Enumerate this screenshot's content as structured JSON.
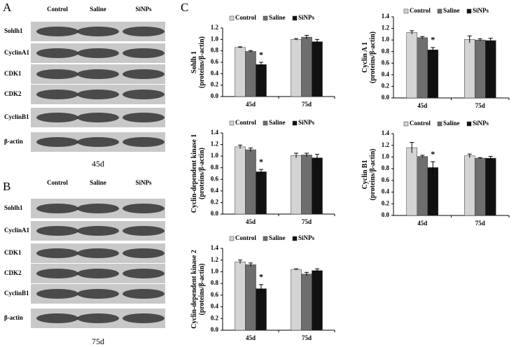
{
  "blots": [
    {
      "panel": "A",
      "columns": [
        "Control",
        "Saline",
        "SiNPs"
      ],
      "rows": [
        "Sohlh1",
        "CyclinA1",
        "CDK1",
        "CDK2",
        "CyclinB1",
        "β-actin"
      ],
      "caption": "45d"
    },
    {
      "panel": "B",
      "columns": [
        "Control",
        "Saline",
        "SiNPs"
      ],
      "rows": [
        "Sohlh1",
        "CyclinA1",
        "CDK1",
        "CDK2",
        "CyclinB1",
        "β-actin"
      ],
      "caption": "75d"
    }
  ],
  "chart_panel": "C",
  "chart_data": [
    {
      "type": "bar",
      "ylabel": [
        "Sohlh 1",
        "(proteins/β-actin)"
      ],
      "categories": [
        "45d",
        "75d"
      ],
      "series": [
        {
          "name": "Control",
          "color": "#d4d4d4",
          "values": [
            0.86,
            1.0
          ],
          "errors": [
            0.01,
            0.015
          ]
        },
        {
          "name": "Saline",
          "color": "#6e6e6e",
          "values": [
            0.79,
            1.04
          ],
          "errors": [
            0.015,
            0.03
          ]
        },
        {
          "name": "SiNPs",
          "color": "#111111",
          "values": [
            0.56,
            0.96
          ],
          "errors": [
            0.04,
            0.04
          ],
          "marks": [
            "*",
            null
          ]
        }
      ],
      "ylim": [
        0,
        1.2
      ],
      "yticks": [
        {
          "value": 0,
          "label": "0.0"
        },
        {
          "value": 0.2,
          "label": "0.2"
        },
        {
          "value": 0.4,
          "label": "0.4"
        },
        {
          "value": 0.6,
          "label": "0.6"
        },
        {
          "value": 0.8,
          "label": "0.8"
        },
        {
          "value": 1,
          "label": "1.0"
        },
        {
          "value": 1.2,
          "label": "1.2"
        }
      ],
      "legend": "top"
    },
    {
      "type": "bar",
      "ylabel": [
        "Cyclin A 1",
        "(proteins/β-actin)"
      ],
      "categories": [
        "45d",
        "75d"
      ],
      "series": [
        {
          "name": "Control",
          "color": "#d4d4d4",
          "values": [
            1.13,
            1.01
          ],
          "errors": [
            0.03,
            0.06
          ]
        },
        {
          "name": "Saline",
          "color": "#6e6e6e",
          "values": [
            1.04,
            1.0
          ],
          "errors": [
            0.02,
            0.02
          ]
        },
        {
          "name": "SiNPs",
          "color": "#111111",
          "values": [
            0.83,
            0.99
          ],
          "errors": [
            0.04,
            0.04
          ],
          "marks": [
            "*",
            null
          ]
        }
      ],
      "ylim": [
        0,
        1.4
      ],
      "yticks": [
        {
          "value": 0,
          "label": "0.0"
        },
        {
          "value": 0.2,
          "label": "0.2"
        },
        {
          "value": 0.4,
          "label": "0.4"
        },
        {
          "value": 0.6,
          "label": "0.6"
        },
        {
          "value": 0.8,
          "label": "0.8"
        },
        {
          "value": 1,
          "label": "1.0"
        },
        {
          "value": 1.2,
          "label": "1.2"
        },
        {
          "value": 1.4,
          "label": "1.4"
        }
      ],
      "legend": "top"
    },
    {
      "type": "bar",
      "ylabel": [
        "Cyclin-dependent kinase 1",
        "(proteins/β-actin)"
      ],
      "categories": [
        "45d",
        "75d"
      ],
      "series": [
        {
          "name": "Control",
          "color": "#d4d4d4",
          "values": [
            1.16,
            1.01
          ],
          "errors": [
            0.03,
            0.04
          ]
        },
        {
          "name": "Saline",
          "color": "#6e6e6e",
          "values": [
            1.11,
            1.02
          ],
          "errors": [
            0.03,
            0.03
          ]
        },
        {
          "name": "SiNPs",
          "color": "#111111",
          "values": [
            0.73,
            0.97
          ],
          "errors": [
            0.04,
            0.06
          ],
          "marks": [
            "*",
            null
          ]
        }
      ],
      "ylim": [
        0,
        1.4
      ],
      "yticks": [
        {
          "value": 0,
          "label": "0.0"
        },
        {
          "value": 0.2,
          "label": "0.2"
        },
        {
          "value": 0.4,
          "label": "0.4"
        },
        {
          "value": 0.6,
          "label": "0.6"
        },
        {
          "value": 0.8,
          "label": "0.8"
        },
        {
          "value": 1,
          "label": "1.0"
        },
        {
          "value": 1.2,
          "label": "1.2"
        },
        {
          "value": 1.4,
          "label": "1.4"
        }
      ],
      "legend": "top"
    },
    {
      "type": "bar",
      "ylabel": [
        "Cyclin B1",
        "(proteins/β-actin)"
      ],
      "categories": [
        "45d",
        "75d"
      ],
      "series": [
        {
          "name": "Control",
          "color": "#d4d4d4",
          "values": [
            1.16,
            1.02
          ],
          "errors": [
            0.09,
            0.03
          ]
        },
        {
          "name": "Saline",
          "color": "#6e6e6e",
          "values": [
            1.01,
            0.98
          ],
          "errors": [
            0.02,
            0.01
          ]
        },
        {
          "name": "SiNPs",
          "color": "#111111",
          "values": [
            0.82,
            0.98
          ],
          "errors": [
            0.1,
            0.03
          ],
          "marks": [
            "*",
            null
          ]
        }
      ],
      "ylim": [
        0,
        1.4
      ],
      "yticks": [
        {
          "value": 0,
          "label": "0.0"
        },
        {
          "value": 0.2,
          "label": "0.2"
        },
        {
          "value": 0.4,
          "label": "0.4"
        },
        {
          "value": 0.6,
          "label": "0.6"
        },
        {
          "value": 0.8,
          "label": "0.8"
        },
        {
          "value": 1,
          "label": "1.0"
        },
        {
          "value": 1.2,
          "label": "1.2"
        },
        {
          "value": 1.4,
          "label": "1.4"
        }
      ],
      "legend": "top"
    },
    {
      "type": "bar",
      "ylabel": [
        "Cyclin-dependent kinase 2",
        "(proteins/β-actin)"
      ],
      "categories": [
        "45d",
        "75d"
      ],
      "series": [
        {
          "name": "Control",
          "color": "#d4d4d4",
          "values": [
            1.17,
            1.04
          ],
          "errors": [
            0.03,
            0.01
          ]
        },
        {
          "name": "Saline",
          "color": "#6e6e6e",
          "values": [
            1.12,
            0.96
          ],
          "errors": [
            0.03,
            0.03
          ]
        },
        {
          "name": "SiNPs",
          "color": "#111111",
          "values": [
            0.71,
            1.02
          ],
          "errors": [
            0.07,
            0.03
          ],
          "marks": [
            "*",
            null
          ]
        }
      ],
      "ylim": [
        0,
        1.4
      ],
      "yticks": [
        {
          "value": 0,
          "label": "0.0"
        },
        {
          "value": 0.2,
          "label": "0.2"
        },
        {
          "value": 0.4,
          "label": "0.4"
        },
        {
          "value": 0.6,
          "label": "0.6"
        },
        {
          "value": 0.8,
          "label": "0.8"
        },
        {
          "value": 1,
          "label": "1.0"
        },
        {
          "value": 1.2,
          "label": "1.2"
        },
        {
          "value": 1.4,
          "label": "1.4"
        }
      ],
      "legend": "top"
    }
  ]
}
